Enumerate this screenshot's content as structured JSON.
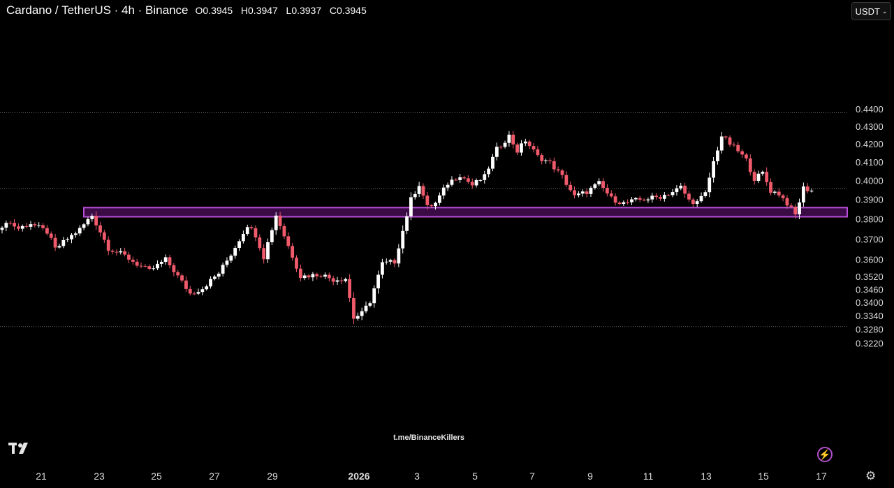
{
  "header": {
    "symbol": "Cardano / TetherUS · 4h · Binance",
    "ohlc": [
      {
        "k": "O",
        "v": "0.3945"
      },
      {
        "k": "H",
        "v": "0.3947"
      },
      {
        "k": "L",
        "v": "0.3937"
      },
      {
        "k": "C",
        "v": "0.3945"
      }
    ]
  },
  "currency_button": {
    "label": "USDT",
    "chevron": "chevron-down-icon"
  },
  "watermark": "t.me/BinanceKillers",
  "icons": {
    "logo": "tradingview-logo-icon",
    "alert": "lightning-bolt-icon",
    "settings": "gear-icon"
  },
  "colors": {
    "up": "#ffffff",
    "down": "#f05a6b",
    "zone_fill": "#3b0b45",
    "zone_border": "#b84fd6",
    "grid_dotted": "#6a6a6a",
    "axis_text": "#d9d9d9"
  },
  "chart_data": {
    "type": "candlestick",
    "y_scale": "log",
    "y_ticks": [
      "0.4400",
      "0.4300",
      "0.4200",
      "0.4100",
      "0.4000",
      "0.3900",
      "0.3800",
      "0.3700",
      "0.3600",
      "0.3520",
      "0.3460",
      "0.3400",
      "0.3340",
      "0.3280",
      "0.3220"
    ],
    "x_ticks": [
      {
        "label": "21",
        "bold": false
      },
      {
        "label": "23",
        "bold": false
      },
      {
        "label": "25",
        "bold": false
      },
      {
        "label": "27",
        "bold": false
      },
      {
        "label": "29",
        "bold": false
      },
      {
        "label": "2026",
        "bold": true
      },
      {
        "label": "3",
        "bold": false
      },
      {
        "label": "5",
        "bold": false
      },
      {
        "label": "7",
        "bold": false
      },
      {
        "label": "9",
        "bold": false
      },
      {
        "label": "11",
        "bold": false
      },
      {
        "label": "13",
        "bold": false
      },
      {
        "label": "15",
        "bold": false
      },
      {
        "label": "17",
        "bold": false
      }
    ],
    "reference_lines": [
      0.4378,
      0.3956,
      0.3292
    ],
    "support_zone": {
      "low": 0.3811,
      "high": 0.3858
    },
    "ylim": [
      0.3208,
      0.4462
    ],
    "anchors": [
      [
        0,
        0.3745
      ],
      [
        1,
        0.3792
      ],
      [
        4,
        0.3752
      ],
      [
        7,
        0.3778
      ],
      [
        11,
        0.3735
      ],
      [
        13,
        0.365
      ],
      [
        16,
        0.37
      ],
      [
        19,
        0.3748
      ],
      [
        22,
        0.3818
      ],
      [
        26,
        0.3655
      ],
      [
        30,
        0.3618
      ],
      [
        33,
        0.3578
      ],
      [
        36,
        0.3545
      ],
      [
        40,
        0.36
      ],
      [
        43,
        0.352
      ],
      [
        46,
        0.344
      ],
      [
        49,
        0.3465
      ],
      [
        53,
        0.3535
      ],
      [
        56,
        0.3625
      ],
      [
        60,
        0.377
      ],
      [
        62,
        0.372
      ],
      [
        64,
        0.3612
      ],
      [
        67,
        0.382
      ],
      [
        70,
        0.3665
      ],
      [
        73,
        0.352
      ],
      [
        78,
        0.353
      ],
      [
        81,
        0.3505
      ],
      [
        84,
        0.351
      ],
      [
        86,
        0.333
      ],
      [
        88,
        0.335
      ],
      [
        90,
        0.3405
      ],
      [
        93,
        0.358
      ],
      [
        96,
        0.359
      ],
      [
        98,
        0.374
      ],
      [
        100,
        0.39
      ],
      [
        102,
        0.398
      ],
      [
        104,
        0.386
      ],
      [
        106,
        0.388
      ],
      [
        109,
        0.3985
      ],
      [
        112,
        0.403
      ],
      [
        115,
        0.3975
      ],
      [
        118,
        0.402
      ],
      [
        121,
        0.417
      ],
      [
        124,
        0.4245
      ],
      [
        126,
        0.416
      ],
      [
        128,
        0.422
      ],
      [
        131,
        0.413
      ],
      [
        134,
        0.4095
      ],
      [
        137,
        0.402
      ],
      [
        140,
        0.3915
      ],
      [
        143,
        0.394
      ],
      [
        146,
        0.3985
      ],
      [
        149,
        0.3905
      ],
      [
        152,
        0.388
      ],
      [
        155,
        0.3895
      ],
      [
        158,
        0.3905
      ],
      [
        161,
        0.3915
      ],
      [
        164,
        0.394
      ],
      [
        166,
        0.3965
      ],
      [
        168,
        0.3895
      ],
      [
        170,
        0.3885
      ],
      [
        172,
        0.393
      ],
      [
        174,
        0.41
      ],
      [
        176,
        0.4245
      ],
      [
        178,
        0.42
      ],
      [
        180,
        0.416
      ],
      [
        182,
        0.411
      ],
      [
        184,
        0.401
      ],
      [
        186,
        0.404
      ],
      [
        188,
        0.3945
      ],
      [
        190,
        0.393
      ],
      [
        192,
        0.388
      ],
      [
        194,
        0.382
      ],
      [
        196,
        0.396
      ],
      [
        198,
        0.3945
      ]
    ],
    "last_close": 0.3945
  }
}
